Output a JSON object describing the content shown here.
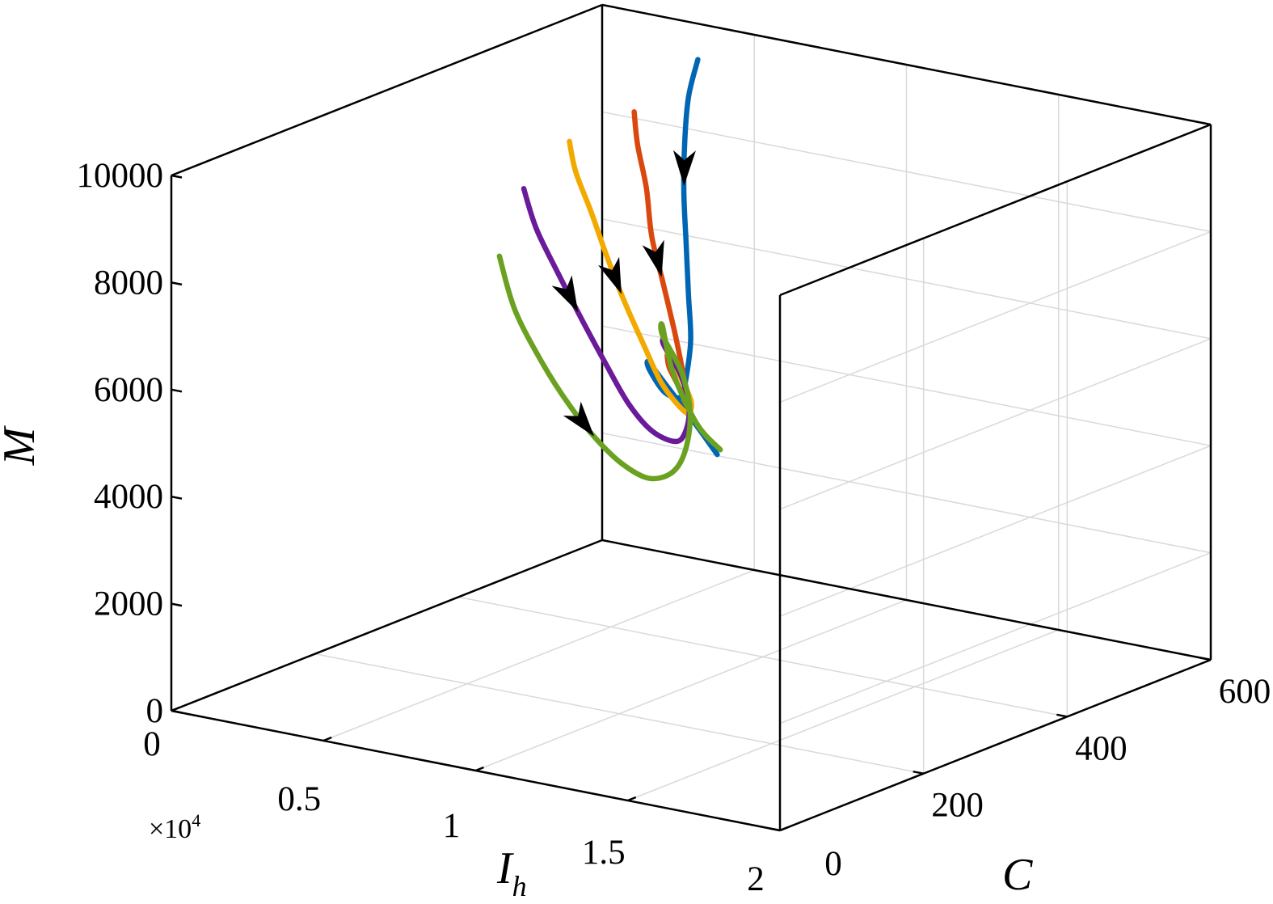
{
  "chart_data": {
    "type": "line",
    "projection": "3d",
    "title": "",
    "xlabel": "I",
    "xlabel_sub": "h",
    "ylabel": "C",
    "zlabel": "M",
    "x_scale_prefix": "×10",
    "x_scale_exponent": "4",
    "xlim": [
      0,
      2
    ],
    "ylim": [
      0,
      600
    ],
    "zlim": [
      0,
      10000
    ],
    "x_ticks": [
      "0",
      "0.5",
      "1",
      "1.5",
      "2"
    ],
    "x_tick_values": [
      0,
      0.5,
      1,
      1.5,
      2
    ],
    "y_ticks": [
      "0",
      "200",
      "400",
      "600"
    ],
    "y_tick_values": [
      0,
      200,
      400,
      600
    ],
    "z_ticks": [
      "0",
      "2000",
      "4000",
      "6000",
      "8000",
      "10000"
    ],
    "z_tick_values": [
      0,
      2000,
      4000,
      6000,
      8000,
      10000
    ],
    "grid": true,
    "series": [
      {
        "color": "#0066b3",
        "x": [
          0.81,
          0.85,
          0.92,
          1.0,
          1.09,
          1.18,
          1.27,
          1.34,
          1.37,
          1.34,
          1.27,
          1.19,
          1.12,
          1.04,
          0.98
        ],
        "y": [
          390,
          360,
          325,
          290,
          255,
          220,
          185,
          148,
          130,
          120,
          128,
          160,
          210,
          280,
          345
        ],
        "z": [
          11000,
          10500,
          9900,
          9250,
          8600,
          7950,
          7350,
          6850,
          6700,
          6800,
          7100,
          7000,
          6300,
          5200,
          4050
        ],
        "arrow_index": 2
      },
      {
        "color": "#d9480f",
        "x": [
          0.53,
          0.6,
          0.7,
          0.8,
          0.92,
          1.05,
          1.17,
          1.28,
          1.36,
          1.38,
          1.33,
          1.24
        ],
        "y": [
          420,
          395,
          365,
          330,
          295,
          255,
          215,
          175,
          140,
          125,
          130,
          165
        ],
        "z": [
          9550,
          9150,
          8600,
          8000,
          7450,
          6950,
          6600,
          6400,
          6500,
          6850,
          7200,
          7150
        ],
        "arrow_index": 3
      },
      {
        "color": "#f2a900",
        "x": [
          0.27,
          0.35,
          0.46,
          0.58,
          0.72,
          0.88,
          1.03,
          1.18,
          1.31,
          1.39,
          1.4,
          1.34,
          1.24
        ],
        "y": [
          440,
          415,
          390,
          360,
          325,
          285,
          245,
          205,
          165,
          135,
          120,
          128,
          165
        ],
        "z": [
          8600,
          8250,
          7750,
          7250,
          6750,
          6300,
          6000,
          5950,
          6150,
          6600,
          7050,
          7350,
          7200
        ],
        "arrow_index": 3
      },
      {
        "color": "#6a1b9a",
        "x": [
          0.12,
          0.22,
          0.35,
          0.5,
          0.66,
          0.83,
          1.0,
          1.17,
          1.31,
          1.4,
          1.41,
          1.34,
          1.24
        ],
        "y": [
          440,
          415,
          390,
          360,
          325,
          285,
          245,
          205,
          160,
          128,
          112,
          118,
          160
        ],
        "z": [
          7550,
          7050,
          6500,
          5950,
          5500,
          5150,
          5050,
          5250,
          5800,
          6550,
          7250,
          7700,
          7500
        ],
        "arrow_index": 2
      },
      {
        "color": "#6aa121",
        "x": [
          0.04,
          0.15,
          0.3,
          0.46,
          0.63,
          0.81,
          0.99,
          1.16,
          1.31,
          1.41,
          1.43,
          1.36,
          1.26,
          1.13,
          1.02,
          0.99
        ],
        "y": [
          440,
          415,
          390,
          360,
          325,
          285,
          245,
          205,
          160,
          125,
          105,
          108,
          150,
          220,
          300,
          345
        ],
        "z": [
          6200,
          5450,
          4750,
          4300,
          4050,
          4000,
          4150,
          4650,
          5450,
          6450,
          7350,
          7950,
          7800,
          6400,
          4900,
          4150
        ],
        "arrow_index": 3
      }
    ]
  }
}
